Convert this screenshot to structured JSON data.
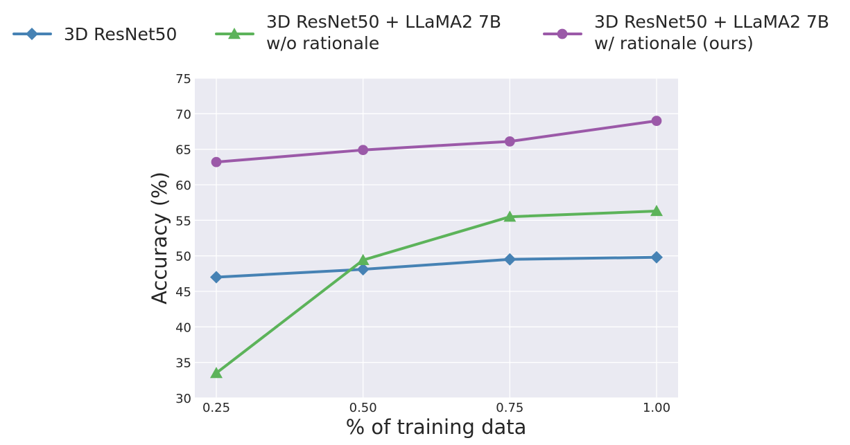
{
  "chart_data": {
    "type": "line",
    "title": "",
    "xlabel": "% of training data",
    "ylabel": "Accuracy (%)",
    "x": [
      0.25,
      0.5,
      0.75,
      1.0
    ],
    "xticks": [
      "0.25",
      "0.50",
      "0.75",
      "1.00"
    ],
    "ylim": [
      30,
      75
    ],
    "yticks": [
      "30",
      "35",
      "40",
      "45",
      "50",
      "55",
      "60",
      "65",
      "70",
      "75"
    ],
    "grid": true,
    "legend_position": "top",
    "series": [
      {
        "name": "3D ResNet50",
        "legend_lines": [
          "3D ResNet50"
        ],
        "color": "#4682b4",
        "marker": "diamond",
        "values": [
          47.0,
          48.1,
          49.5,
          49.8
        ]
      },
      {
        "name": "3D ResNet50 + LLaMA2 7B w/o rationale",
        "legend_lines": [
          "3D ResNet50 + LLaMA2 7B",
          "w/o rationale"
        ],
        "color": "#5cb35a",
        "marker": "triangle",
        "values": [
          33.5,
          49.4,
          55.5,
          56.3
        ]
      },
      {
        "name": "3D ResNet50 + LLaMA2 7B w/ rationale (ours)",
        "legend_lines": [
          "3D ResNet50 + LLaMA2 7B",
          "w/ rationale (ours)"
        ],
        "color": "#9b59a8",
        "marker": "circle",
        "values": [
          63.2,
          64.9,
          66.1,
          69.0
        ]
      }
    ]
  }
}
